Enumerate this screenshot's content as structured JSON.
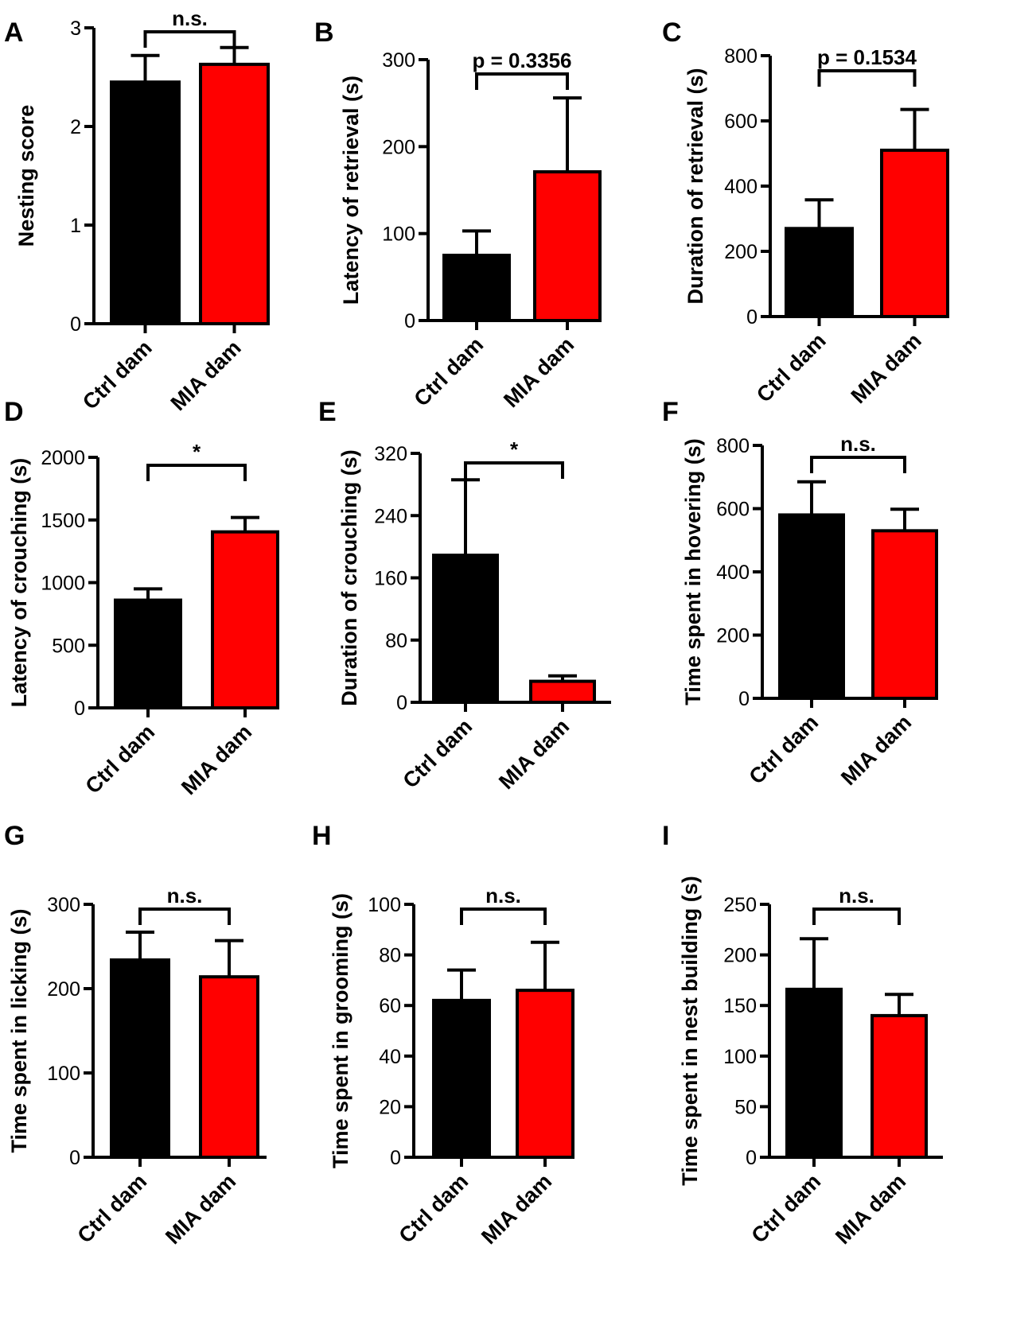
{
  "colors": {
    "ctrl": "#000000",
    "mia": "#ff0000",
    "axis": "#000000"
  },
  "chart_data": [
    {
      "panel": "A",
      "type": "bar",
      "ylabel": "Nesting score",
      "ylim": [
        0,
        3
      ],
      "yticks": [
        "0",
        "1",
        "2",
        "3"
      ],
      "categories": [
        "Ctrl dam",
        "MIA dam"
      ],
      "values": [
        2.45,
        2.63
      ],
      "errors": [
        0.27,
        0.17
      ],
      "significance": "n.s."
    },
    {
      "panel": "B",
      "type": "bar",
      "ylabel": "Latency of retrieval (s)",
      "ylim": [
        0,
        300
      ],
      "yticks": [
        "0",
        "100",
        "200",
        "300"
      ],
      "categories": [
        "Ctrl dam",
        "MIA dam"
      ],
      "values": [
        75,
        171
      ],
      "errors": [
        28,
        85
      ],
      "significance": "p = 0.3356"
    },
    {
      "panel": "C",
      "type": "bar",
      "ylabel": "Duration of retrieval (s)",
      "ylim": [
        0,
        800
      ],
      "yticks": [
        "0",
        "200",
        "400",
        "600",
        "800"
      ],
      "categories": [
        "Ctrl dam",
        "MIA dam"
      ],
      "values": [
        270,
        510
      ],
      "errors": [
        88,
        125
      ],
      "significance": "p = 0.1534"
    },
    {
      "panel": "D",
      "type": "bar",
      "ylabel": "Latency of crouching (s)",
      "ylim": [
        0,
        2000
      ],
      "yticks": [
        "0",
        "500",
        "1000",
        "1500",
        "2000"
      ],
      "categories": [
        "Ctrl dam",
        "MIA dam"
      ],
      "values": [
        860,
        1405
      ],
      "errors": [
        90,
        115
      ],
      "significance": "*"
    },
    {
      "panel": "E",
      "type": "bar",
      "ylabel": "Duration of crouching (s)",
      "ylim": [
        0,
        320
      ],
      "yticks": [
        "0",
        "80",
        "160",
        "240",
        "320"
      ],
      "categories": [
        "Ctrl dam",
        "MIA dam"
      ],
      "values": [
        189,
        27
      ],
      "errors": [
        97,
        7
      ],
      "significance": "*"
    },
    {
      "panel": "F",
      "type": "bar",
      "ylabel": "Time spent in hovering (s)",
      "ylim": [
        0,
        800
      ],
      "yticks": [
        "0",
        "200",
        "400",
        "600",
        "800"
      ],
      "categories": [
        "Ctrl dam",
        "MIA dam"
      ],
      "values": [
        580,
        530
      ],
      "errors": [
        105,
        68
      ],
      "significance": "n.s."
    },
    {
      "panel": "G",
      "type": "bar",
      "ylabel": "Time spent in licking (s)",
      "ylim": [
        0,
        300
      ],
      "yticks": [
        "0",
        "100",
        "200",
        "300"
      ],
      "categories": [
        "Ctrl dam",
        "MIA dam"
      ],
      "values": [
        234,
        214
      ],
      "errors": [
        33,
        43
      ],
      "significance": "n.s."
    },
    {
      "panel": "H",
      "type": "bar",
      "ylabel": "Time spent in grooming (s)",
      "ylim": [
        0,
        100
      ],
      "yticks": [
        "0",
        "20",
        "40",
        "60",
        "80",
        "100"
      ],
      "categories": [
        "Ctrl dam",
        "MIA dam"
      ],
      "values": [
        62,
        66
      ],
      "errors": [
        12,
        19
      ],
      "significance": "n.s."
    },
    {
      "panel": "I",
      "type": "bar",
      "ylabel": "Time spent in nest building (s)",
      "ylim": [
        0,
        250
      ],
      "yticks": [
        "0",
        "50",
        "100",
        "150",
        "200",
        "250"
      ],
      "categories": [
        "Ctrl dam",
        "MIA dam"
      ],
      "values": [
        166,
        140
      ],
      "errors": [
        50,
        21
      ],
      "significance": "n.s."
    }
  ]
}
